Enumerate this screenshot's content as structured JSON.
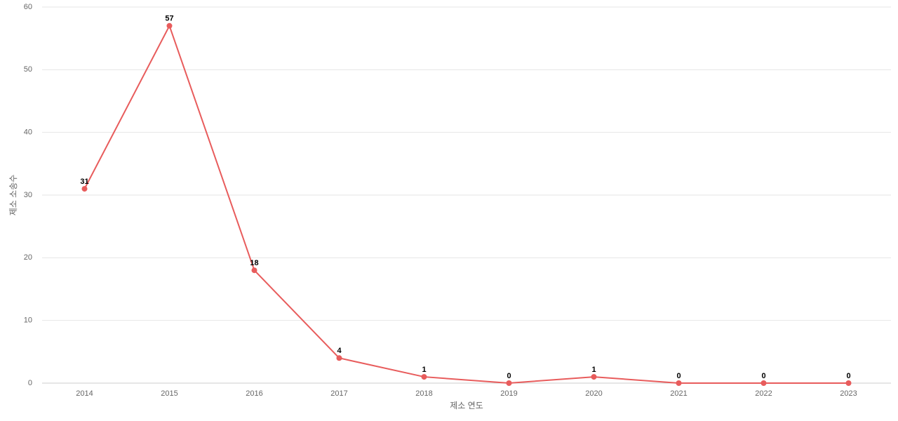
{
  "chart_data": {
    "type": "line",
    "x_label": "제소 연도",
    "y_label": "제소 소송수",
    "categories": [
      "2014",
      "2015",
      "2016",
      "2017",
      "2018",
      "2019",
      "2020",
      "2021",
      "2022",
      "2023"
    ],
    "values": [
      31,
      57,
      18,
      4,
      1,
      0,
      1,
      0,
      0,
      0
    ],
    "color": "#e85c5c",
    "ylim": [
      0,
      60
    ],
    "yticks": [
      0,
      10,
      20,
      30,
      40,
      50,
      60
    ],
    "grid": true,
    "data_labels": true
  }
}
